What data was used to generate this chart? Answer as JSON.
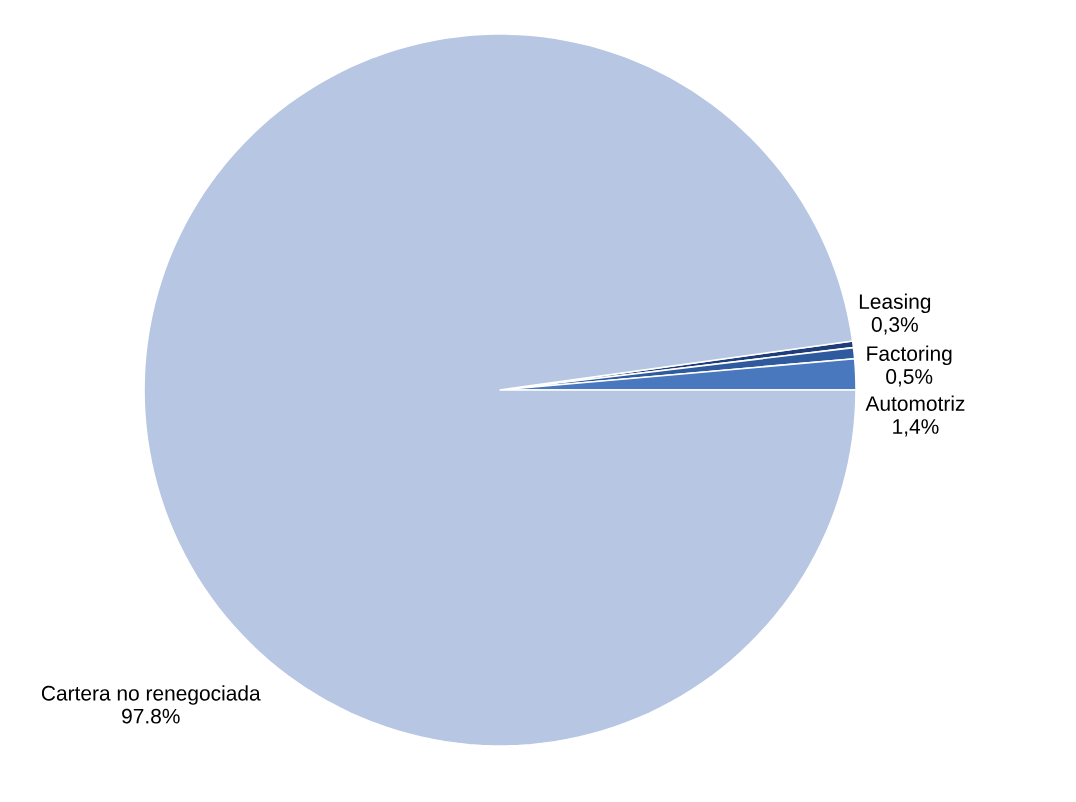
{
  "chart_data": {
    "type": "pie",
    "categories": [
      "Leasing",
      "Factoring",
      "Automotriz",
      "Cartera no renegociada"
    ],
    "values": [
      0.3,
      0.5,
      1.4,
      97.8
    ],
    "value_labels": [
      "0,3%",
      "0,5%",
      "1,4%",
      "97.8%"
    ],
    "colors": [
      "#1f3d7a",
      "#2f5a9e",
      "#4a78be",
      "#b7c6e2"
    ]
  }
}
